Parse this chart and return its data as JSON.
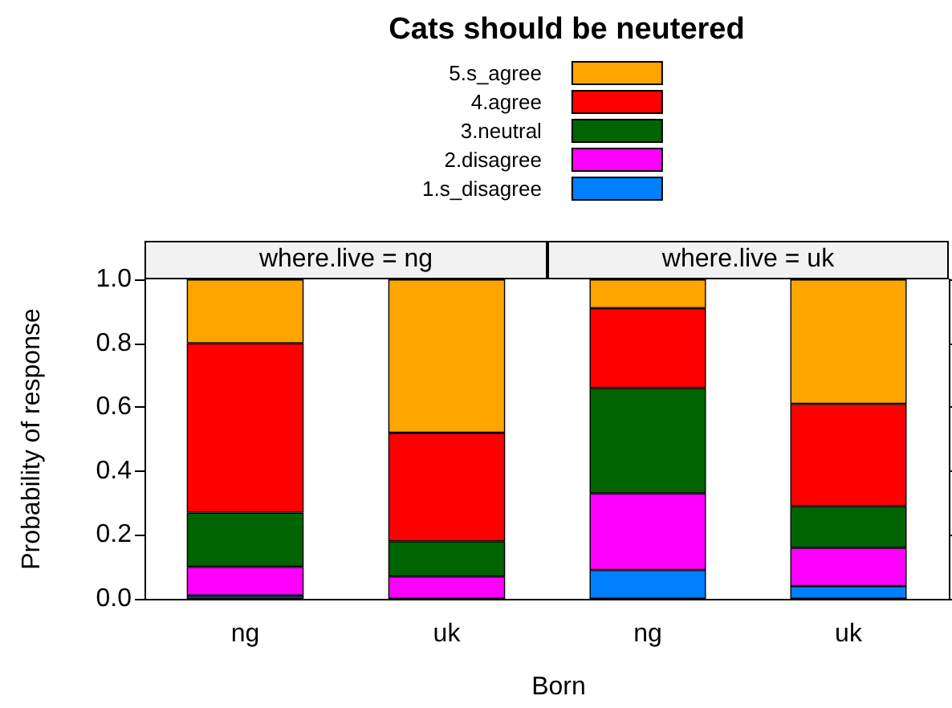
{
  "chart_data": [
    {
      "type": "bar",
      "title": "Cats should be neutered",
      "subtitle": "where.live = ng",
      "xlabel": "Born",
      "ylabel": "Probability of response",
      "stacked": true,
      "legend": "top",
      "grid": false,
      "categories": [
        "ng",
        "uk"
      ],
      "ylim": [
        0,
        1
      ],
      "yticks": [
        {
          "value": 0,
          "label": "0.0"
        },
        {
          "value": 0.2,
          "label": "0.2"
        },
        {
          "value": 0.4,
          "label": "0.4"
        },
        {
          "value": 0.6,
          "label": "0.6"
        },
        {
          "value": 0.8,
          "label": "0.8"
        },
        {
          "value": 1,
          "label": "1.0"
        }
      ],
      "series": [
        {
          "name": "1.s_disagree",
          "color": "#0080ff",
          "values": [
            0.01,
            null
          ]
        },
        {
          "name": "2.disagree",
          "color": "#ff00ff",
          "values": [
            0.09,
            0.07
          ]
        },
        {
          "name": "3.neutral",
          "color": "#006400",
          "values": [
            0.17,
            0.11
          ]
        },
        {
          "name": "4.agree",
          "color": "#ff0000",
          "values": [
            0.53,
            0.34
          ]
        },
        {
          "name": "5.s_agree",
          "color": "#ffa500",
          "values": [
            0.2,
            0.48
          ]
        }
      ]
    },
    {
      "type": "bar",
      "subtitle": "where.live = uk",
      "stacked": true,
      "grid": false,
      "tick_labels": "x",
      "categories": [
        "ng",
        "uk"
      ],
      "ylim": [
        0,
        1
      ],
      "yticks": [
        0,
        0.2,
        0.4,
        0.6,
        0.8,
        1
      ],
      "series": [
        {
          "color": "#0080ff",
          "values": [
            0.09,
            0.04
          ]
        },
        {
          "color": "#ff00ff",
          "values": [
            0.24,
            0.12
          ]
        },
        {
          "color": "#006400",
          "values": [
            0.33,
            0.13
          ]
        },
        {
          "color": "#ff0000",
          "values": [
            0.25,
            0.32
          ]
        },
        {
          "color": "#ffa500",
          "values": [
            0.09,
            0.39
          ]
        }
      ]
    }
  ]
}
